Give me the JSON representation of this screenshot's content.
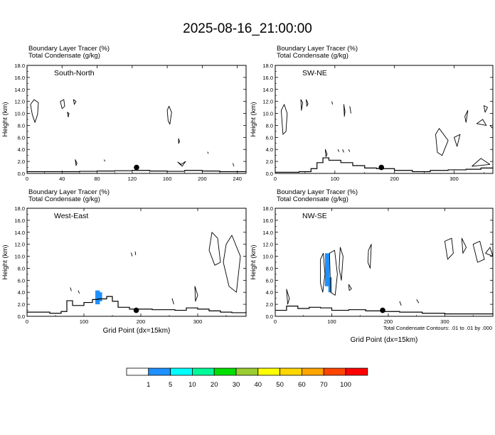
{
  "title": "2025-08-16_21:00:00",
  "chart_data": [
    {
      "type": "contour",
      "field_label": "Boundary Layer Tracer   (%)",
      "field2_label": "Total Condensate   (g/kg)",
      "cross_section": "South-North",
      "ylabel": "Height (km)",
      "xlabel": "",
      "xlim": [
        0,
        250
      ],
      "ylim": [
        0,
        18
      ],
      "xticks": [
        "0",
        "40",
        "80",
        "120",
        "160",
        "200",
        "240"
      ],
      "yticks": [
        "0.0",
        "2.0",
        "4.0",
        "6.0",
        "8.0",
        "10.0",
        "12.0",
        "14.0",
        "16.0",
        "18.0"
      ],
      "marker": {
        "x": 125,
        "y": 1.0
      },
      "terrain": [
        [
          0,
          0.3
        ],
        [
          40,
          0.3
        ],
        [
          60,
          0.35
        ],
        [
          80,
          0.4
        ],
        [
          100,
          0.45
        ],
        [
          120,
          0.5
        ],
        [
          140,
          0.4
        ],
        [
          160,
          0.35
        ],
        [
          180,
          0.5
        ],
        [
          200,
          0.4
        ],
        [
          220,
          0.3
        ],
        [
          250,
          0.3
        ]
      ],
      "condensate_contours": [
        [
          [
            4,
            11.5
          ],
          [
            8,
            12.3
          ],
          [
            13,
            11.8
          ],
          [
            12,
            9.8
          ],
          [
            9,
            8.5
          ],
          [
            6,
            9.8
          ]
        ],
        [
          [
            38,
            12.0
          ],
          [
            42,
            12.3
          ],
          [
            43,
            11.2
          ],
          [
            40,
            10.8
          ]
        ],
        [
          [
            46,
            10.2
          ],
          [
            47,
            9.4
          ],
          [
            48,
            10.0
          ]
        ],
        [
          [
            53,
            12.3
          ],
          [
            56,
            12.0
          ],
          [
            54,
            11.5
          ]
        ],
        [
          [
            55,
            2.3
          ],
          [
            57,
            1.7
          ],
          [
            56,
            1.3
          ]
        ],
        [
          [
            88,
            2.3
          ],
          [
            89,
            2.0
          ]
        ],
        [
          [
            160,
            10.5
          ],
          [
            162,
            11.2
          ],
          [
            165,
            10.2
          ],
          [
            163,
            8.2
          ],
          [
            161,
            8.8
          ]
        ],
        [
          [
            173,
            5.8
          ],
          [
            174,
            5.3
          ],
          [
            173,
            5.0
          ]
        ],
        [
          [
            172,
            1.9
          ],
          [
            176,
            1.5
          ],
          [
            181,
            2.0
          ],
          [
            177,
            1.2
          ]
        ],
        [
          [
            206,
            3.6
          ],
          [
            207,
            3.3
          ]
        ],
        [
          [
            235,
            1.7
          ],
          [
            236,
            1.2
          ]
        ]
      ]
    },
    {
      "type": "contour",
      "field_label": "Boundary Layer Tracer   (%)",
      "field2_label": "Total Condensate   (g/kg)",
      "cross_section": "SW-NE",
      "ylabel": "Height (km)",
      "xlabel": "",
      "xlim": [
        0,
        365
      ],
      "ylim": [
        0,
        18
      ],
      "xticks": [
        "0",
        "100",
        "200",
        "300"
      ],
      "yticks": [
        "0.0",
        "2.0",
        "4.0",
        "6.0",
        "8.0",
        "10.0",
        "12.0",
        "14.0",
        "16.0",
        "18.0"
      ],
      "marker": {
        "x": 178,
        "y": 1.0
      },
      "terrain": [
        [
          0,
          0.2
        ],
        [
          40,
          0.3
        ],
        [
          60,
          0.8
        ],
        [
          70,
          1.8
        ],
        [
          80,
          2.6
        ],
        [
          90,
          2.2
        ],
        [
          110,
          1.8
        ],
        [
          130,
          1.3
        ],
        [
          150,
          0.9
        ],
        [
          170,
          0.8
        ],
        [
          200,
          0.5
        ],
        [
          230,
          0.3
        ],
        [
          260,
          0.5
        ],
        [
          290,
          0.6
        ],
        [
          320,
          0.7
        ],
        [
          345,
          0.9
        ],
        [
          365,
          1.0
        ]
      ],
      "condensate_contours": [
        [
          [
            10,
            10.5
          ],
          [
            15,
            11.5
          ],
          [
            20,
            10.0
          ],
          [
            18,
            7.0
          ],
          [
            13,
            6.5
          ]
        ],
        [
          [
            43,
            12.3
          ],
          [
            46,
            11.8
          ],
          [
            44,
            10.5
          ]
        ],
        [
          [
            52,
            12.3
          ],
          [
            55,
            11.6
          ],
          [
            53,
            11.2
          ]
        ],
        [
          [
            95,
            12.0
          ],
          [
            96,
            11.5
          ]
        ],
        [
          [
            115,
            11.5
          ],
          [
            117,
            10.3
          ],
          [
            116,
            9.5
          ]
        ],
        [
          [
            125,
            11.2
          ],
          [
            127,
            10.0
          ]
        ],
        [
          [
            84,
            4.0
          ],
          [
            87,
            3.2
          ],
          [
            85,
            2.8
          ]
        ],
        [
          [
            105,
            4.0
          ],
          [
            107,
            3.6
          ]
        ],
        [
          [
            113,
            4.0
          ],
          [
            115,
            3.5
          ]
        ],
        [
          [
            123,
            4.0
          ],
          [
            125,
            3.6
          ]
        ],
        [
          [
            269,
            6.5
          ],
          [
            275,
            7.5
          ],
          [
            290,
            5.5
          ],
          [
            280,
            3.0
          ],
          [
            272,
            3.5
          ]
        ],
        [
          [
            300,
            6.0
          ],
          [
            310,
            6.5
          ],
          [
            305,
            4.5
          ]
        ],
        [
          [
            318,
            9.5
          ],
          [
            323,
            10.5
          ],
          [
            320,
            8.5
          ]
        ],
        [
          [
            338,
            8.3
          ],
          [
            348,
            9.0
          ],
          [
            354,
            8.0
          ]
        ],
        [
          [
            350,
            11.3
          ],
          [
            356,
            11.0
          ],
          [
            352,
            10.2
          ]
        ],
        [
          [
            360,
            8.0
          ],
          [
            365,
            7.5
          ]
        ],
        [
          [
            330,
            1.2
          ],
          [
            345,
            2.5
          ],
          [
            360,
            1.5
          ]
        ]
      ]
    },
    {
      "type": "contour",
      "field_label": "Boundary Layer Tracer   (%)",
      "field2_label": "Total Condensate   (g/kg)",
      "cross_section": "West-East",
      "ylabel": "Height (km)",
      "xlabel": "Grid Point (dx=15km)",
      "xlim": [
        0,
        385
      ],
      "ylim": [
        0,
        18
      ],
      "xticks": [
        "0",
        "100",
        "200",
        "300"
      ],
      "yticks": [
        "0.0",
        "2.0",
        "4.0",
        "6.0",
        "8.0",
        "10.0",
        "12.0",
        "14.0",
        "16.0",
        "18.0"
      ],
      "marker": {
        "x": 192,
        "y": 1.0
      },
      "terrain": [
        [
          0,
          0.7
        ],
        [
          40,
          0.5
        ],
        [
          60,
          0.8
        ],
        [
          70,
          2.6
        ],
        [
          80,
          1.8
        ],
        [
          100,
          2.3
        ],
        [
          115,
          2.8
        ],
        [
          125,
          2.9
        ],
        [
          140,
          3.3
        ],
        [
          150,
          2.5
        ],
        [
          160,
          1.5
        ],
        [
          180,
          1.2
        ],
        [
          220,
          1.1
        ],
        [
          260,
          1.0
        ],
        [
          280,
          1.4
        ],
        [
          300,
          1.2
        ],
        [
          320,
          0.9
        ],
        [
          340,
          0.7
        ],
        [
          360,
          0.6
        ],
        [
          385,
          0.8
        ]
      ],
      "shaded_cells": [
        {
          "x": [
            120,
            128
          ],
          "y": [
            2.0,
            4.3
          ],
          "level": 1
        },
        {
          "x": [
            126,
            132
          ],
          "y": [
            2.5,
            4.0
          ],
          "level": 1
        }
      ],
      "condensate_contours": [
        [
          [
            76,
            4.8
          ],
          [
            78,
            4.2
          ]
        ],
        [
          [
            90,
            4.3
          ],
          [
            92,
            3.8
          ]
        ],
        [
          [
            183,
            10.6
          ],
          [
            185,
            10.0
          ]
        ],
        [
          [
            190,
            10.8
          ],
          [
            191,
            10.2
          ]
        ],
        [
          [
            325,
            14.0
          ],
          [
            335,
            13.0
          ],
          [
            340,
            9.0
          ],
          [
            330,
            8.5
          ],
          [
            320,
            11.0
          ]
        ],
        [
          [
            350,
            12.0
          ],
          [
            360,
            13.5
          ],
          [
            375,
            10.0
          ],
          [
            368,
            4.0
          ],
          [
            355,
            5.0
          ],
          [
            345,
            9.0
          ]
        ],
        [
          [
            255,
            3.0
          ],
          [
            258,
            2.0
          ]
        ],
        [
          [
            295,
            5.0
          ],
          [
            300,
            3.5
          ],
          [
            296,
            2.5
          ]
        ]
      ]
    },
    {
      "type": "contour",
      "field_label": "Boundary Layer Tracer   (%)",
      "field2_label": "Total Condensate   (g/kg)",
      "cross_section": "NW-SE",
      "ylabel": "Height (km)",
      "xlabel": "Grid Point (dx=15km)",
      "xlim": [
        0,
        385
      ],
      "ylim": [
        0,
        18
      ],
      "xticks": [
        "0",
        "100",
        "200",
        "300"
      ],
      "yticks": [
        "0.0",
        "2.0",
        "4.0",
        "6.0",
        "8.0",
        "10.0",
        "12.0",
        "14.0",
        "16.0",
        "18.0"
      ],
      "marker": {
        "x": 190,
        "y": 1.0
      },
      "terrain": [
        [
          0,
          1.0
        ],
        [
          20,
          1.7
        ],
        [
          40,
          1.3
        ],
        [
          60,
          1.5
        ],
        [
          80,
          1.4
        ],
        [
          100,
          1.0
        ],
        [
          130,
          1.1
        ],
        [
          160,
          0.9
        ],
        [
          190,
          0.8
        ],
        [
          220,
          0.7
        ],
        [
          260,
          0.5
        ],
        [
          300,
          0.4
        ],
        [
          340,
          0.4
        ],
        [
          385,
          0.3
        ]
      ],
      "shaded_cells": [
        {
          "x": [
            88,
            96
          ],
          "y": [
            5.0,
            10.5
          ],
          "level": 1
        },
        {
          "x": [
            94,
            100
          ],
          "y": [
            4.0,
            6.5
          ],
          "level": 1
        }
      ],
      "condensate_contours": [
        [
          [
            80,
            9.5
          ],
          [
            85,
            10.5
          ],
          [
            88,
            7.0
          ],
          [
            84,
            4.0
          ],
          [
            80,
            5.5
          ]
        ],
        [
          [
            96,
            10.5
          ],
          [
            105,
            11.0
          ],
          [
            110,
            7.0
          ],
          [
            106,
            3.5
          ],
          [
            98,
            4.0
          ]
        ],
        [
          [
            115,
            11.5
          ],
          [
            120,
            10.0
          ],
          [
            117,
            6.0
          ],
          [
            113,
            8.0
          ]
        ],
        [
          [
            165,
            11.0
          ],
          [
            170,
            12.0
          ],
          [
            168,
            8.0
          ],
          [
            164,
            9.0
          ]
        ],
        [
          [
            20,
            4.5
          ],
          [
            25,
            3.0
          ],
          [
            22,
            2.0
          ]
        ],
        [
          [
            300,
            12.5
          ],
          [
            312,
            13.0
          ],
          [
            315,
            10.5
          ],
          [
            305,
            9.5
          ]
        ],
        [
          [
            330,
            13.0
          ],
          [
            338,
            11.5
          ],
          [
            332,
            10.5
          ]
        ],
        [
          [
            350,
            12.0
          ],
          [
            362,
            12.5
          ],
          [
            370,
            9.5
          ],
          [
            358,
            9.0
          ]
        ],
        [
          [
            372,
            10.5
          ],
          [
            380,
            11.5
          ],
          [
            385,
            10.0
          ]
        ],
        [
          [
            220,
            2.5
          ],
          [
            223,
            1.8
          ]
        ],
        [
          [
            250,
            2.8
          ],
          [
            254,
            2.2
          ]
        ],
        [
          [
            130,
            5.3
          ],
          [
            135,
            4.6
          ],
          [
            131,
            4.3
          ]
        ]
      ],
      "note": "Total Condensate Contours: .01 to .01 by .000"
    }
  ],
  "colorbar": {
    "labels": [
      "1",
      "5",
      "10",
      "20",
      "30",
      "40",
      "50",
      "60",
      "70",
      "100"
    ],
    "colors": [
      "#ffffff",
      "#1e90ff",
      "#00ffff",
      "#00fa9a",
      "#00e000",
      "#9acd32",
      "#ffff00",
      "#ffd700",
      "#ffa500",
      "#ff4500",
      "#ff0000"
    ]
  }
}
